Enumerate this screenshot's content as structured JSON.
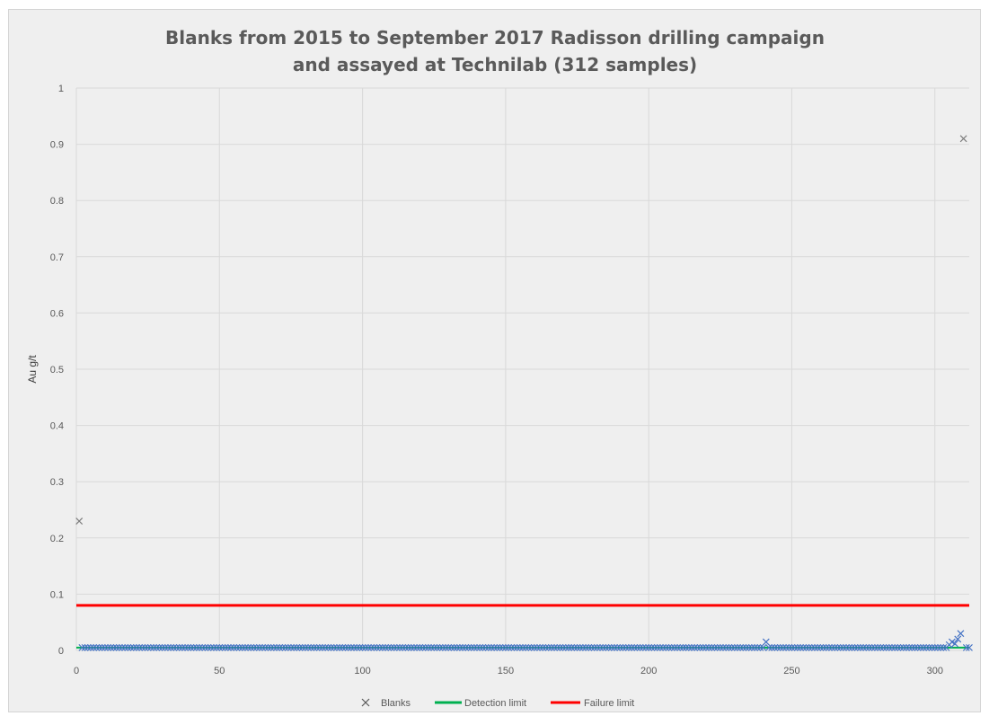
{
  "chart_data": {
    "type": "scatter",
    "title": [
      "Blanks from 2015 to September 2017 Radisson drilling campaign",
      "and assayed at Technilab (312 samples)"
    ],
    "xlabel": "",
    "ylabel": "Au g/t",
    "xlim": [
      0,
      312
    ],
    "ylim": [
      0,
      1
    ],
    "xticks": [
      0,
      50,
      100,
      150,
      200,
      250,
      300
    ],
    "yticks": [
      0,
      0.1,
      0.2,
      0.3,
      0.4,
      0.5,
      0.6,
      0.7,
      0.8,
      0.9,
      1
    ],
    "grid": true,
    "legend_position": "bottom",
    "sample_count": 312,
    "series": [
      {
        "name": "Blanks",
        "kind": "scatter",
        "marker": "x",
        "color": "#4472c4",
        "baseline_value": 0.005,
        "outliers": [
          {
            "x": 1,
            "y": 0.23
          },
          {
            "x": 241,
            "y": 0.015
          },
          {
            "x": 305,
            "y": 0.01
          },
          {
            "x": 306,
            "y": 0.015
          },
          {
            "x": 307,
            "y": 0.012
          },
          {
            "x": 308,
            "y": 0.02
          },
          {
            "x": 309,
            "y": 0.03
          },
          {
            "x": 310,
            "y": 0.91
          }
        ]
      },
      {
        "name": "Detection limit",
        "kind": "line",
        "color": "#00b050",
        "value": 0.005
      },
      {
        "name": "Failure limit",
        "kind": "line",
        "color": "#ff0000",
        "value": 0.08
      }
    ]
  }
}
